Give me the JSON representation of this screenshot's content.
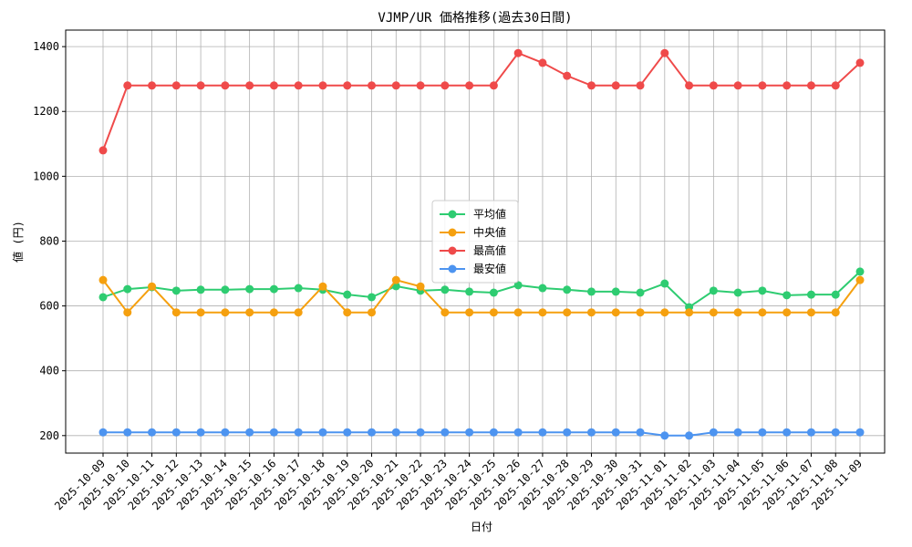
{
  "chart_data": {
    "type": "line",
    "title": "VJMP/UR 価格推移(過去30日間)",
    "xlabel": "日付",
    "ylabel": "値 (円)",
    "categories": [
      "2025-10-09",
      "2025-10-10",
      "2025-10-11",
      "2025-10-12",
      "2025-10-13",
      "2025-10-14",
      "2025-10-15",
      "2025-10-16",
      "2025-10-17",
      "2025-10-18",
      "2025-10-19",
      "2025-10-20",
      "2025-10-21",
      "2025-10-22",
      "2025-10-23",
      "2025-10-24",
      "2025-10-25",
      "2025-10-26",
      "2025-10-27",
      "2025-10-28",
      "2025-10-29",
      "2025-10-30",
      "2025-10-31",
      "2025-11-01",
      "2025-11-02",
      "2025-11-03",
      "2025-11-04",
      "2025-11-05",
      "2025-11-06",
      "2025-11-07",
      "2025-11-08",
      "2025-11-09"
    ],
    "series": [
      {
        "name": "平均値",
        "color": "#2ecc71",
        "values": [
          627,
          652,
          658,
          647,
          650,
          650,
          652,
          652,
          655,
          650,
          635,
          627,
          661,
          647,
          650,
          644,
          641,
          664,
          655,
          650,
          644,
          644,
          641,
          669,
          596,
          647,
          641,
          647,
          633,
          635,
          635,
          706
        ]
      },
      {
        "name": "中央値",
        "color": "#f5a00f",
        "values": [
          680,
          580,
          660,
          580,
          580,
          580,
          580,
          580,
          580,
          660,
          580,
          580,
          680,
          660,
          580,
          580,
          580,
          580,
          580,
          580,
          580,
          580,
          580,
          580,
          580,
          580,
          580,
          580,
          580,
          580,
          580,
          680
        ]
      },
      {
        "name": "最高値",
        "color": "#ef4a4a",
        "values": [
          1080,
          1280,
          1280,
          1280,
          1280,
          1280,
          1280,
          1280,
          1280,
          1280,
          1280,
          1280,
          1280,
          1280,
          1280,
          1280,
          1280,
          1380,
          1350,
          1310,
          1280,
          1280,
          1280,
          1380,
          1280,
          1280,
          1280,
          1280,
          1280,
          1280,
          1280,
          1350
        ]
      },
      {
        "name": "最安値",
        "color": "#4d94f0",
        "values": [
          210,
          210,
          210,
          210,
          210,
          210,
          210,
          210,
          210,
          210,
          210,
          210,
          210,
          210,
          210,
          210,
          210,
          210,
          210,
          210,
          210,
          210,
          210,
          200,
          200,
          210,
          210,
          210,
          210,
          210,
          210,
          210
        ]
      }
    ],
    "ylim": [
      146,
      1451
    ],
    "yticks": [
      200,
      400,
      600,
      800,
      1000,
      1200,
      1400
    ],
    "grid": true,
    "legend": "center"
  }
}
